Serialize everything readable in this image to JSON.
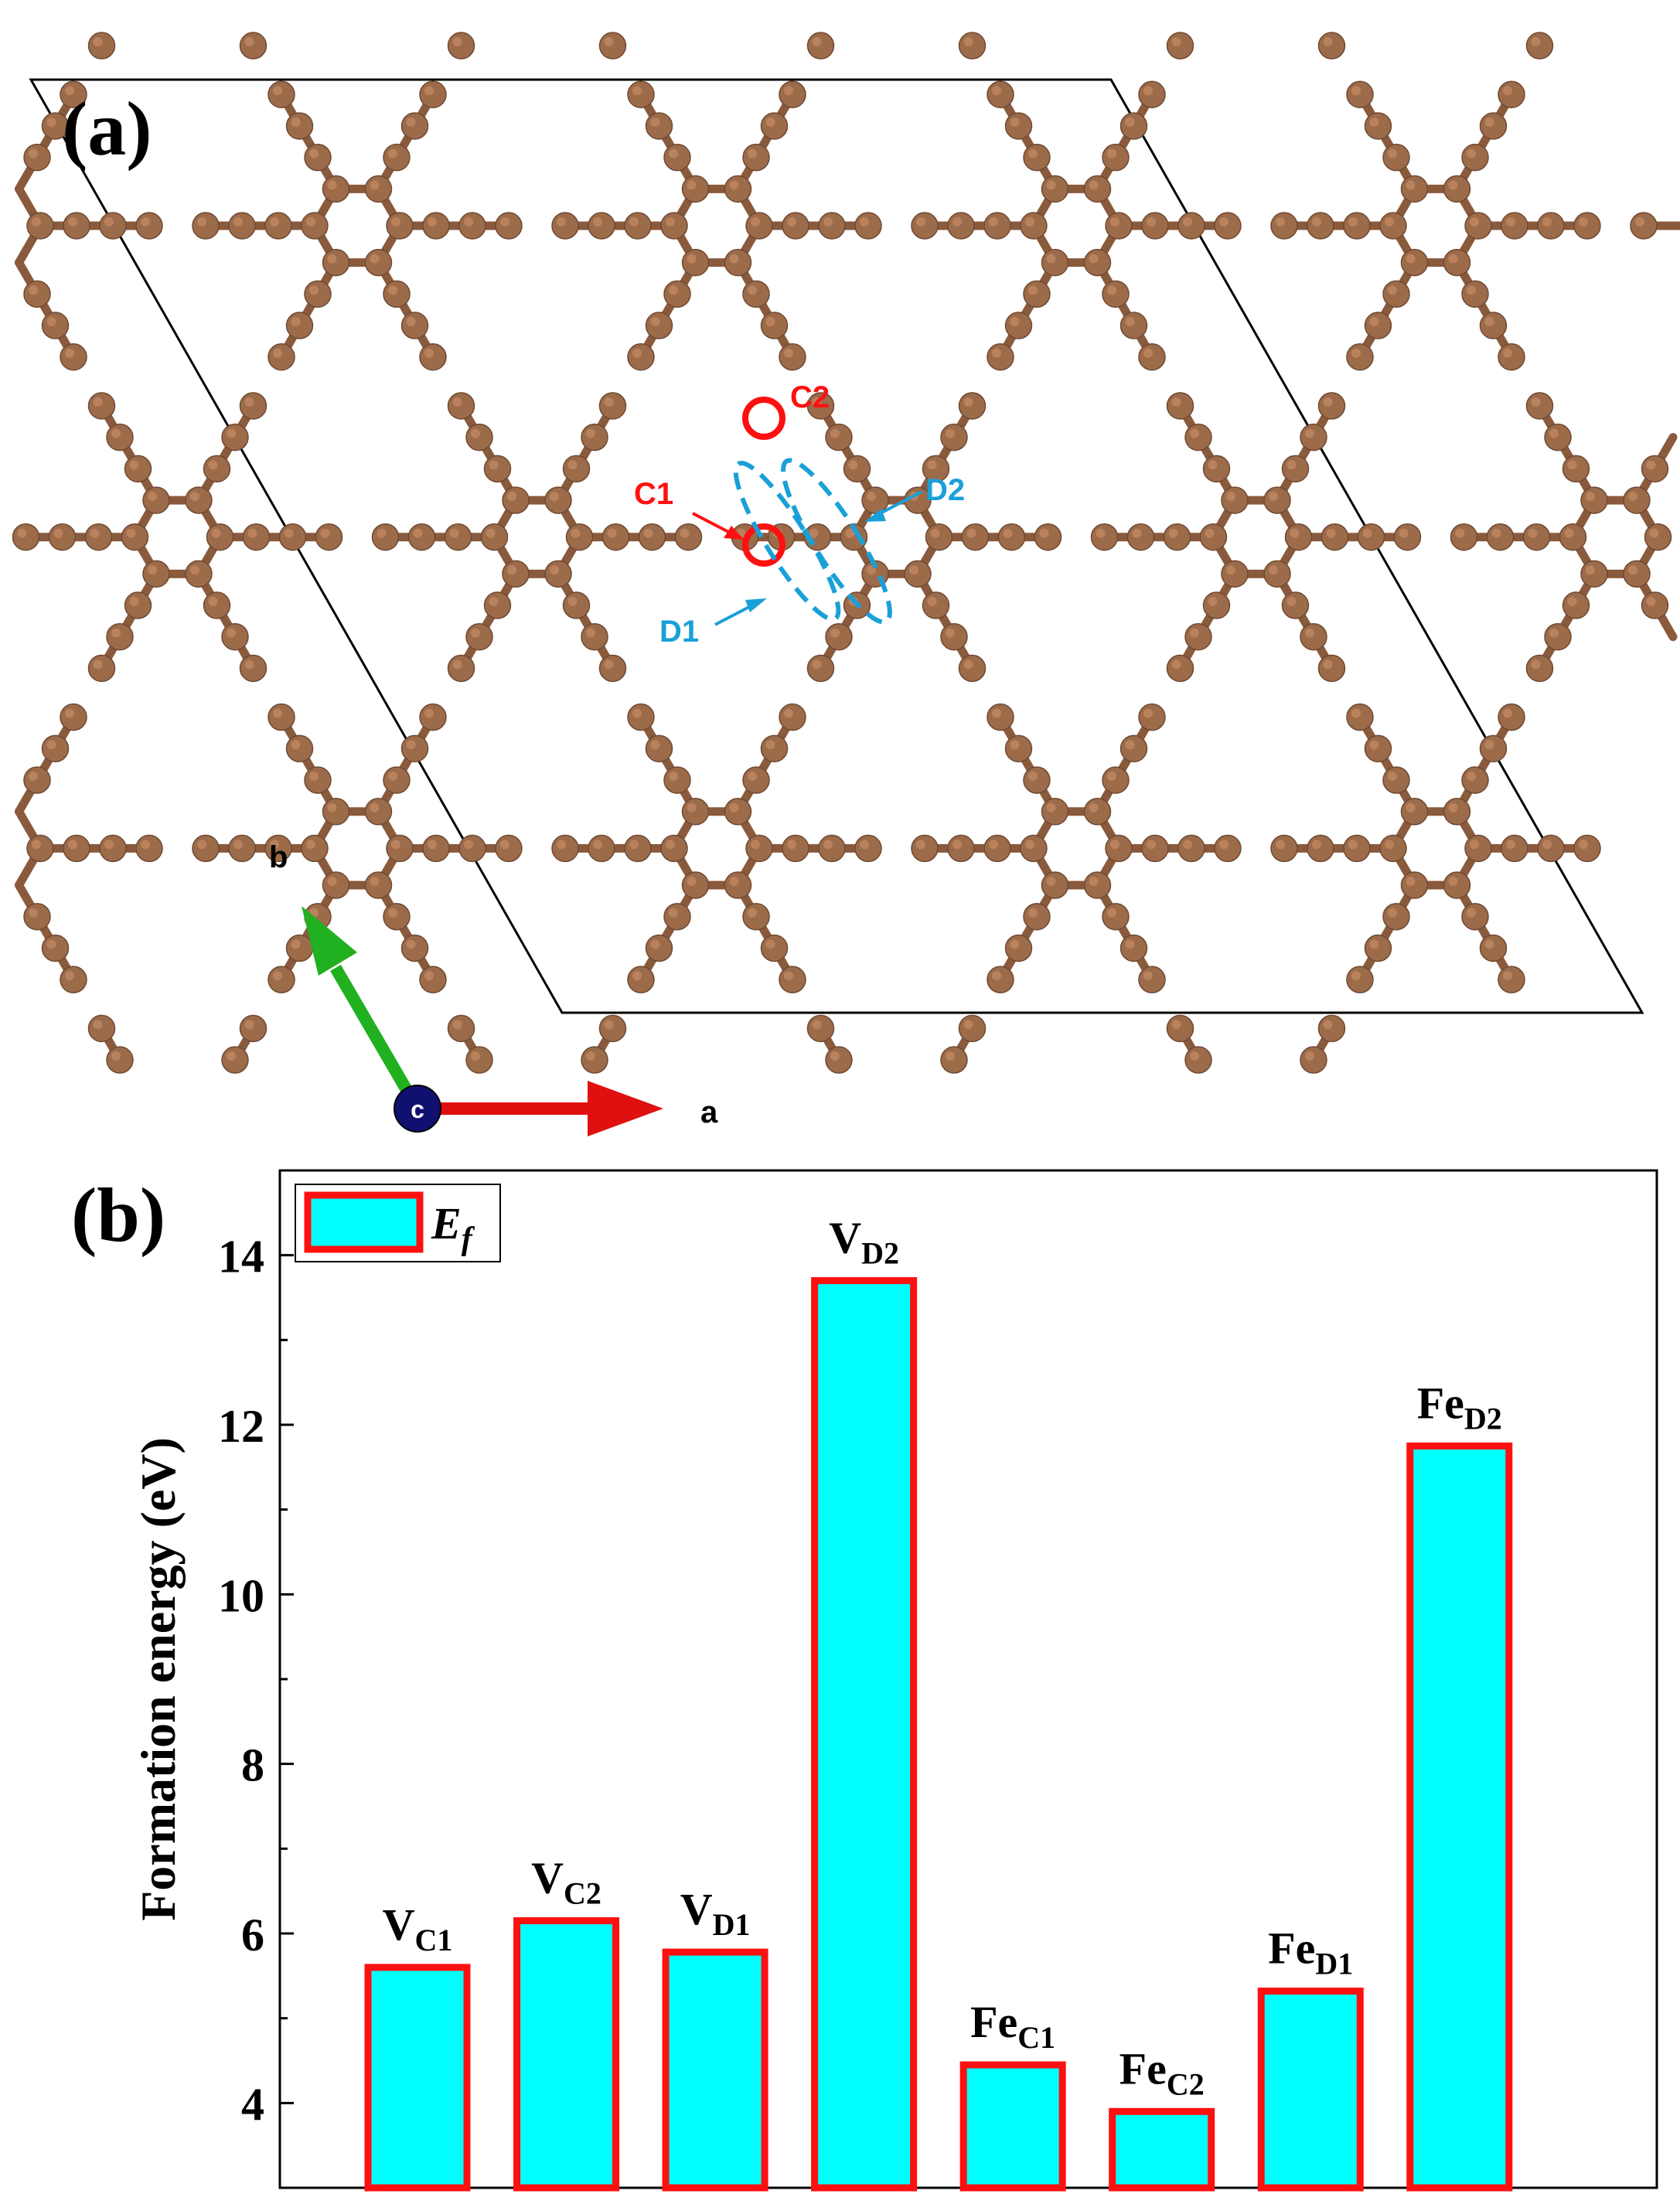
{
  "panel_a": {
    "label": "(a)",
    "site_labels": {
      "c1": "C1",
      "c2": "C2",
      "d1": "D1",
      "d2": "D2"
    },
    "axes": {
      "a": "a",
      "b": "b",
      "c": "c"
    },
    "colors": {
      "atom": "#9c6b4a",
      "atom_highlight": "#c08860",
      "bond": "#8a5a3c",
      "site_marker": "#ff1010",
      "dimer_marker": "#1aa0d8",
      "axis_a": "#e01010",
      "axis_b": "#20b020",
      "axis_c": "#101070"
    }
  },
  "panel_b": {
    "label": "(b)"
  },
  "chart_data": {
    "type": "bar",
    "categories": [
      {
        "main": "V",
        "sub": "C1"
      },
      {
        "main": "V",
        "sub": "C2"
      },
      {
        "main": "V",
        "sub": "D1"
      },
      {
        "main": "V",
        "sub": "D2"
      },
      {
        "main": "Fe",
        "sub": "C1"
      },
      {
        "main": "Fe",
        "sub": "C2"
      },
      {
        "main": "Fe",
        "sub": "D1"
      },
      {
        "main": "Fe",
        "sub": "D2"
      }
    ],
    "values": [
      5.6,
      6.15,
      5.78,
      13.7,
      4.45,
      3.9,
      5.32,
      11.75
    ],
    "ylabel": "Formation energy (eV)",
    "ylim": [
      3.0,
      15.0
    ],
    "yticks": [
      4,
      6,
      8,
      10,
      12,
      14
    ],
    "legend": {
      "main": "E",
      "sub": "f",
      "placement": "top-left"
    },
    "colors": {
      "fill": "#00ffff",
      "edge": "#ff1010"
    },
    "grid": false
  }
}
